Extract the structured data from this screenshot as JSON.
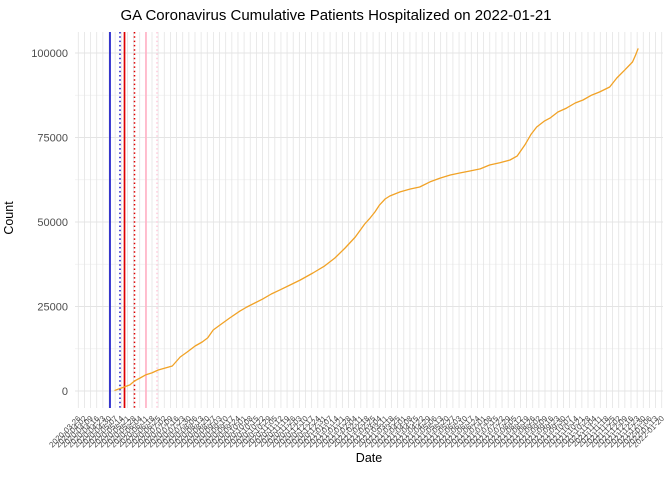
{
  "title": "GA Coronavirus Cumulative Patients Hospitalized on 2022-01-21",
  "chart_data": {
    "type": "line",
    "title": "GA Coronavirus Cumulative Patients Hospitalized on 2022-01-21",
    "xlabel": "Date",
    "ylabel": "Count",
    "ylim": [
      0,
      106000
    ],
    "yticks": [
      0,
      25000,
      50000,
      75000,
      100000
    ],
    "yticks_minor": [
      12500,
      37500,
      62500,
      87500
    ],
    "grid": true,
    "legend": "none",
    "colors": {
      "line": "#F1A226",
      "grid": "#E4E4E4",
      "grid_minor": "#EFEFEF",
      "tick_text": "#4D4D4D",
      "title_text": "#000000",
      "vline_blue": "#1B1BC8",
      "vline_red": "#DD0000",
      "vline_pink": "#FFB3C6",
      "vline_pink_light": "#FFC9DA"
    },
    "vlines": [
      {
        "style": "solid",
        "color": "#1B1BC8",
        "x_frac": 0.0595
      },
      {
        "style": "dotted",
        "color": "#1B1BC8",
        "x_frac": 0.0765
      },
      {
        "style": "solid",
        "color": "#DD0000",
        "x_frac": 0.0842
      },
      {
        "style": "dotted",
        "color": "#DD0000",
        "x_frac": 0.1012
      },
      {
        "style": "solid",
        "color": "#FFB3C6",
        "x_frac": 0.1207
      },
      {
        "style": "dotted",
        "color": "#FFC9DA",
        "x_frac": 0.1395
      }
    ],
    "x_tick_labels": [
      "2020-03-26",
      "2020-04-02",
      "2020-04-09",
      "2020-04-16",
      "2020-04-23",
      "2020-04-30",
      "2020-05-07",
      "2020-05-14",
      "2020-05-21",
      "2020-05-28",
      "2020-06-04",
      "2020-06-11",
      "2020-06-18",
      "2020-06-25",
      "2020-07-02",
      "2020-07-09",
      "2020-07-16",
      "2020-07-23",
      "2020-07-30",
      "2020-08-06",
      "2020-08-13",
      "2020-08-20",
      "2020-08-27",
      "2020-09-03",
      "2020-09-10",
      "2020-09-17",
      "2020-09-24",
      "2020-10-01",
      "2020-10-08",
      "2020-10-15",
      "2020-10-22",
      "2020-10-29",
      "2020-11-05",
      "2020-11-12",
      "2020-11-19",
      "2020-11-26",
      "2020-12-03",
      "2020-12-10",
      "2020-12-17",
      "2020-12-24",
      "2020-12-31",
      "2021-01-07",
      "2021-01-14",
      "2021-01-21",
      "2021-01-28",
      "2021-02-04",
      "2021-02-11",
      "2021-02-18",
      "2021-02-25",
      "2021-03-04",
      "2021-03-11",
      "2021-03-18",
      "2021-03-25",
      "2021-04-01",
      "2021-04-08",
      "2021-04-15",
      "2021-04-22",
      "2021-04-29",
      "2021-05-06",
      "2021-05-13",
      "2021-05-20",
      "2021-05-27",
      "2021-06-03",
      "2021-06-10",
      "2021-06-17",
      "2021-06-24",
      "2021-07-01",
      "2021-07-08",
      "2021-07-15",
      "2021-07-22",
      "2021-07-29",
      "2021-08-05",
      "2021-08-12",
      "2021-08-19",
      "2021-08-26",
      "2021-09-02",
      "2021-09-09",
      "2021-09-16",
      "2021-09-23",
      "2021-09-30",
      "2021-10-07",
      "2021-10-14",
      "2021-10-21",
      "2021-10-28",
      "2021-11-04",
      "2021-11-11",
      "2021-11-18",
      "2021-11-25",
      "2021-12-02",
      "2021-12-09",
      "2021-12-16",
      "2021-12-23",
      "2021-12-30",
      "2022-01-06",
      "2022-01-13",
      "2022-01-20"
    ],
    "series": [
      {
        "name": "cumulative-patients-hospitalized",
        "color": "#F1A226",
        "points": [
          [
            "2020-03-26",
            200
          ],
          [
            "2020-04-01",
            700
          ],
          [
            "2020-04-08",
            1300
          ],
          [
            "2020-04-14",
            1800
          ],
          [
            "2020-04-20",
            3000
          ],
          [
            "2020-04-27",
            3850
          ],
          [
            "2020-05-04",
            4750
          ],
          [
            "2020-05-12",
            5350
          ],
          [
            "2020-05-20",
            6200
          ],
          [
            "2020-05-29",
            6800
          ],
          [
            "2020-06-07",
            7400
          ],
          [
            "2020-06-17",
            10050
          ],
          [
            "2020-06-26",
            11550
          ],
          [
            "2020-07-06",
            13300
          ],
          [
            "2020-07-15",
            14500
          ],
          [
            "2020-07-22",
            15700
          ],
          [
            "2020-07-29",
            18050
          ],
          [
            "2020-08-07",
            19550
          ],
          [
            "2020-08-19",
            21600
          ],
          [
            "2020-09-01",
            23650
          ],
          [
            "2020-09-10",
            24850
          ],
          [
            "2020-09-20",
            26050
          ],
          [
            "2020-09-30",
            27200
          ],
          [
            "2020-10-11",
            28700
          ],
          [
            "2020-10-22",
            29900
          ],
          [
            "2020-11-04",
            31350
          ],
          [
            "2020-11-17",
            32850
          ],
          [
            "2020-12-03",
            34900
          ],
          [
            "2020-12-18",
            37000
          ],
          [
            "2020-12-31",
            39350
          ],
          [
            "2021-01-13",
            42300
          ],
          [
            "2021-01-26",
            45550
          ],
          [
            "2021-02-07",
            49400
          ],
          [
            "2021-02-14",
            51200
          ],
          [
            "2021-02-20",
            52950
          ],
          [
            "2021-02-26",
            55050
          ],
          [
            "2021-03-05",
            56800
          ],
          [
            "2021-03-11",
            57700
          ],
          [
            "2021-03-24",
            58900
          ],
          [
            "2021-04-06",
            59750
          ],
          [
            "2021-04-18",
            60350
          ],
          [
            "2021-05-01",
            61850
          ],
          [
            "2021-05-14",
            63000
          ],
          [
            "2021-05-27",
            63900
          ],
          [
            "2021-06-08",
            64500
          ],
          [
            "2021-06-21",
            65100
          ],
          [
            "2021-07-04",
            65700
          ],
          [
            "2021-07-16",
            66850
          ],
          [
            "2021-07-29",
            67500
          ],
          [
            "2021-08-11",
            68350
          ],
          [
            "2021-08-20",
            69500
          ],
          [
            "2021-08-30",
            72800
          ],
          [
            "2021-09-07",
            76000
          ],
          [
            "2021-09-14",
            78100
          ],
          [
            "2021-09-24",
            79900
          ],
          [
            "2021-10-01",
            80750
          ],
          [
            "2021-10-11",
            82550
          ],
          [
            "2021-10-22",
            83700
          ],
          [
            "2021-11-02",
            85200
          ],
          [
            "2021-11-12",
            86100
          ],
          [
            "2021-11-23",
            87550
          ],
          [
            "2021-12-03",
            88450
          ],
          [
            "2021-12-16",
            89950
          ],
          [
            "2021-12-25",
            92600
          ],
          [
            "2022-01-04",
            94950
          ],
          [
            "2022-01-14",
            97350
          ],
          [
            "2022-01-18",
            99400
          ],
          [
            "2022-01-21",
            101200
          ]
        ]
      }
    ]
  }
}
